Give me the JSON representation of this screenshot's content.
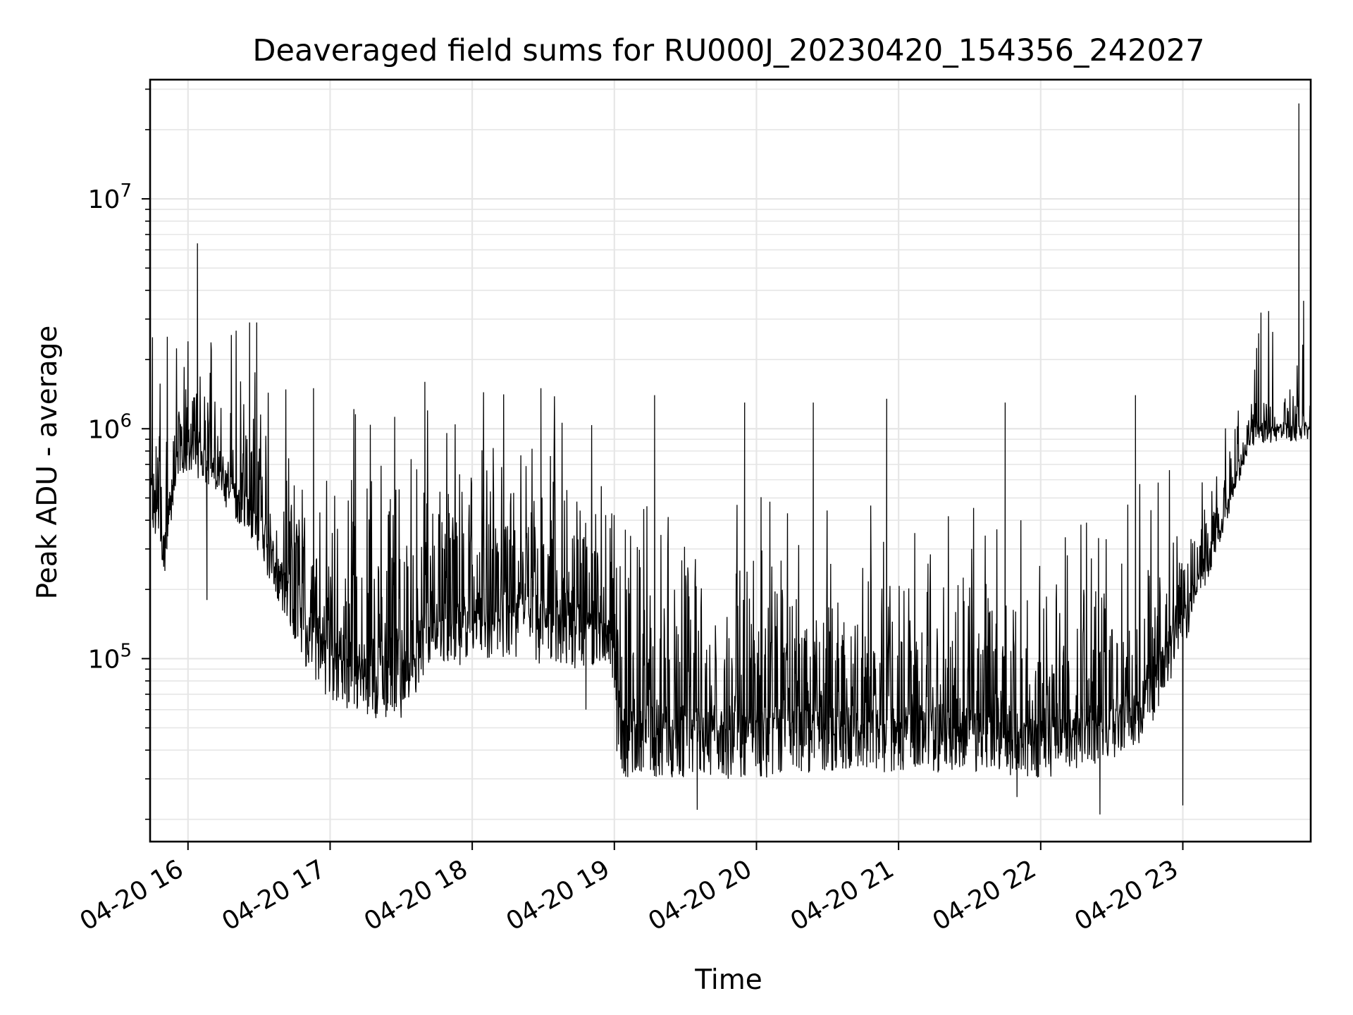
{
  "chart_data": {
    "type": "line",
    "title": "Deaveraged field sums for RU000J_20230420_154356_242027",
    "xlabel": "Time",
    "ylabel": "Peak ADU - average",
    "yscale": "log",
    "ylim": [
      16000,
      33000000
    ],
    "xlim": [
      "04-20 15:44",
      "04-20 23:54"
    ],
    "grid": true,
    "line_color": "#000000",
    "grid_color": "#e6e6e6",
    "x_ticks": [
      "04-20 16",
      "04-20 17",
      "04-20 18",
      "04-20 19",
      "04-20 20",
      "04-20 21",
      "04-20 22",
      "04-20 23"
    ],
    "y_ticks": [
      {
        "base": "10",
        "exp": "5",
        "value": 100000
      },
      {
        "base": "10",
        "exp": "6",
        "value": 1000000
      },
      {
        "base": "10",
        "exp": "7",
        "value": 10000000
      }
    ],
    "series": [
      {
        "envelope": [
          {
            "t": "15:44",
            "lo": 400000,
            "hi": 1800000
          },
          {
            "t": "15:50",
            "lo": 220000,
            "hi": 1000000
          },
          {
            "t": "15:55",
            "lo": 600000,
            "hi": 1600000
          },
          {
            "t": "16:00",
            "lo": 650000,
            "hi": 2400000
          },
          {
            "t": "16:10",
            "lo": 550000,
            "hi": 1400000
          },
          {
            "t": "16:20",
            "lo": 400000,
            "hi": 1200000
          },
          {
            "t": "16:30",
            "lo": 280000,
            "hi": 1200000
          },
          {
            "t": "16:40",
            "lo": 150000,
            "hi": 700000
          },
          {
            "t": "16:50",
            "lo": 90000,
            "hi": 600000
          },
          {
            "t": "17:00",
            "lo": 65000,
            "hi": 550000
          },
          {
            "t": "17:15",
            "lo": 55000,
            "hi": 550000
          },
          {
            "t": "17:30",
            "lo": 55000,
            "hi": 560000
          },
          {
            "t": "17:45",
            "lo": 100000,
            "hi": 600000
          },
          {
            "t": "18:00",
            "lo": 90000,
            "hi": 650000
          },
          {
            "t": "18:15",
            "lo": 100000,
            "hi": 700000
          },
          {
            "t": "18:30",
            "lo": 90000,
            "hi": 750000
          },
          {
            "t": "18:45",
            "lo": 90000,
            "hi": 600000
          },
          {
            "t": "18:59",
            "lo": 90000,
            "hi": 500000
          },
          {
            "t": "19:01",
            "lo": 30000,
            "hi": 260000
          },
          {
            "t": "19:30",
            "lo": 30000,
            "hi": 260000
          },
          {
            "t": "20:00",
            "lo": 30000,
            "hi": 250000
          },
          {
            "t": "20:30",
            "lo": 32000,
            "hi": 230000
          },
          {
            "t": "21:00",
            "lo": 32000,
            "hi": 220000
          },
          {
            "t": "21:30",
            "lo": 32000,
            "hi": 210000
          },
          {
            "t": "22:00",
            "lo": 30000,
            "hi": 190000
          },
          {
            "t": "22:15",
            "lo": 32000,
            "hi": 190000
          },
          {
            "t": "22:30",
            "lo": 35000,
            "hi": 240000
          },
          {
            "t": "22:45",
            "lo": 45000,
            "hi": 280000
          },
          {
            "t": "23:00",
            "lo": 110000,
            "hi": 380000
          },
          {
            "t": "23:15",
            "lo": 300000,
            "hi": 600000
          },
          {
            "t": "23:30",
            "lo": 850000,
            "hi": 1500000
          },
          {
            "t": "23:54",
            "lo": 900000,
            "hi": 1500000
          }
        ],
        "spikes": [
          {
            "t": "15:45",
            "value": 2500000
          },
          {
            "t": "16:00",
            "value": 2400000
          },
          {
            "t": "16:04",
            "value": 6400000
          },
          {
            "t": "16:08",
            "value": 180000
          },
          {
            "t": "16:26",
            "value": 2900000
          },
          {
            "t": "16:29",
            "value": 2900000
          },
          {
            "t": "16:53",
            "value": 1500000
          },
          {
            "t": "17:40",
            "value": 1600000
          },
          {
            "t": "18:29",
            "value": 1500000
          },
          {
            "t": "18:48",
            "value": 60000
          },
          {
            "t": "19:17",
            "value": 1400000
          },
          {
            "t": "19:35",
            "value": 22000
          },
          {
            "t": "19:55",
            "value": 1300000
          },
          {
            "t": "20:24",
            "value": 1300000
          },
          {
            "t": "20:55",
            "value": 1350000
          },
          {
            "t": "21:45",
            "value": 1300000
          },
          {
            "t": "21:50",
            "value": 25000
          },
          {
            "t": "22:25",
            "value": 21000
          },
          {
            "t": "22:40",
            "value": 1400000
          },
          {
            "t": "23:00",
            "value": 23000
          },
          {
            "t": "23:33",
            "value": 3200000
          },
          {
            "t": "23:49",
            "value": 26000000
          },
          {
            "t": "23:51",
            "value": 3600000
          }
        ]
      }
    ]
  }
}
